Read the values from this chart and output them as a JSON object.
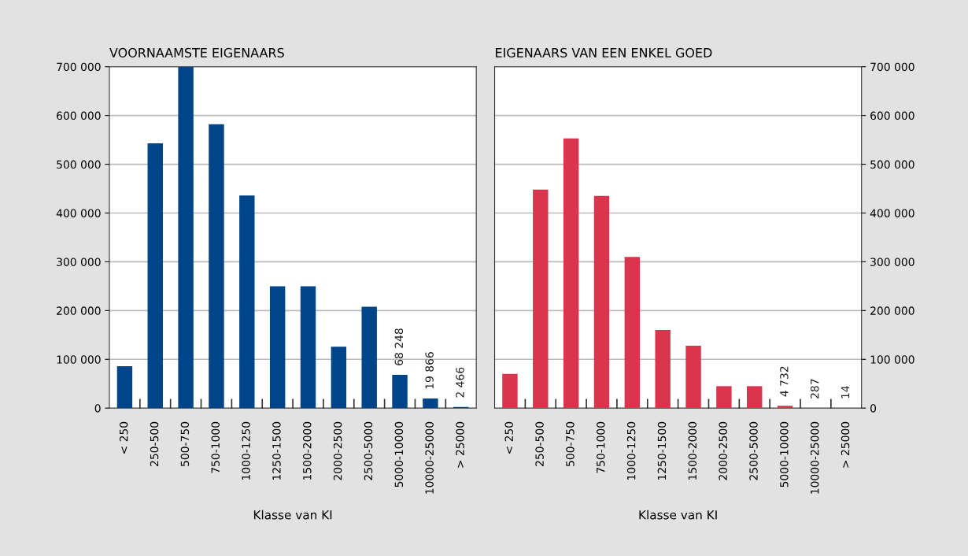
{
  "chart_data": [
    {
      "type": "bar",
      "title": "VOORNAAMSTE EIGENAARS",
      "xlabel": "Klasse van KI",
      "categories": [
        "< 250",
        "250-500",
        "500-750",
        "750-1000",
        "1000-1250",
        "1250-1500",
        "1500-2000",
        "2000-2500",
        "2500-5000",
        "5000-10000",
        "10000-25000",
        "> 25000"
      ],
      "series": [
        {
          "color": "#00448a",
          "values": [
            86000,
            543000,
            700000,
            582000,
            436000,
            250000,
            250000,
            126000,
            208000,
            68248,
            19866,
            2466
          ],
          "value_labels": [
            null,
            null,
            null,
            null,
            null,
            null,
            null,
            null,
            null,
            "68 248",
            "19 866",
            "2 466"
          ]
        }
      ],
      "ylim": [
        0,
        700000
      ],
      "yticks": [
        {
          "value": 0,
          "label": "0"
        },
        {
          "value": 100000,
          "label": "100 000"
        },
        {
          "value": 200000,
          "label": "200 000"
        },
        {
          "value": 300000,
          "label": "300 000"
        },
        {
          "value": 400000,
          "label": "400 000"
        },
        {
          "value": 500000,
          "label": "500 000"
        },
        {
          "value": 600000,
          "label": "600 000"
        },
        {
          "value": 700000,
          "label": "700 000"
        }
      ],
      "grid": "y",
      "legend": false
    },
    {
      "type": "bar",
      "title": "EIGENAARS VAN EEN ENKEL GOED",
      "xlabel": "Klasse van KI",
      "categories": [
        "< 250",
        "250-500",
        "500-750",
        "750-1000",
        "1000-1250",
        "1250-1500",
        "1500-2000",
        "2000-2500",
        "2500-5000",
        "5000-10000",
        "10000-25000",
        "> 25000"
      ],
      "series": [
        {
          "color": "#d9364e",
          "axis": "y2",
          "values": [
            70000,
            448000,
            553000,
            435000,
            310000,
            160000,
            128000,
            45000,
            45000,
            4732,
            287,
            14
          ],
          "value_labels": [
            null,
            null,
            null,
            null,
            null,
            null,
            null,
            null,
            null,
            "4 732",
            "287",
            "14"
          ]
        }
      ],
      "y2lim": [
        0,
        700000
      ],
      "y2ticks": [
        {
          "value": 0,
          "label": "0"
        },
        {
          "value": 100000,
          "label": "100 000"
        },
        {
          "value": 200000,
          "label": "200 000"
        },
        {
          "value": 300000,
          "label": "300 000"
        },
        {
          "value": 400000,
          "label": "400 000"
        },
        {
          "value": 500000,
          "label": "500 000"
        },
        {
          "value": 600000,
          "label": "600 000"
        },
        {
          "value": 700000,
          "label": "700 000"
        }
      ],
      "grid": "y",
      "legend": false
    }
  ]
}
